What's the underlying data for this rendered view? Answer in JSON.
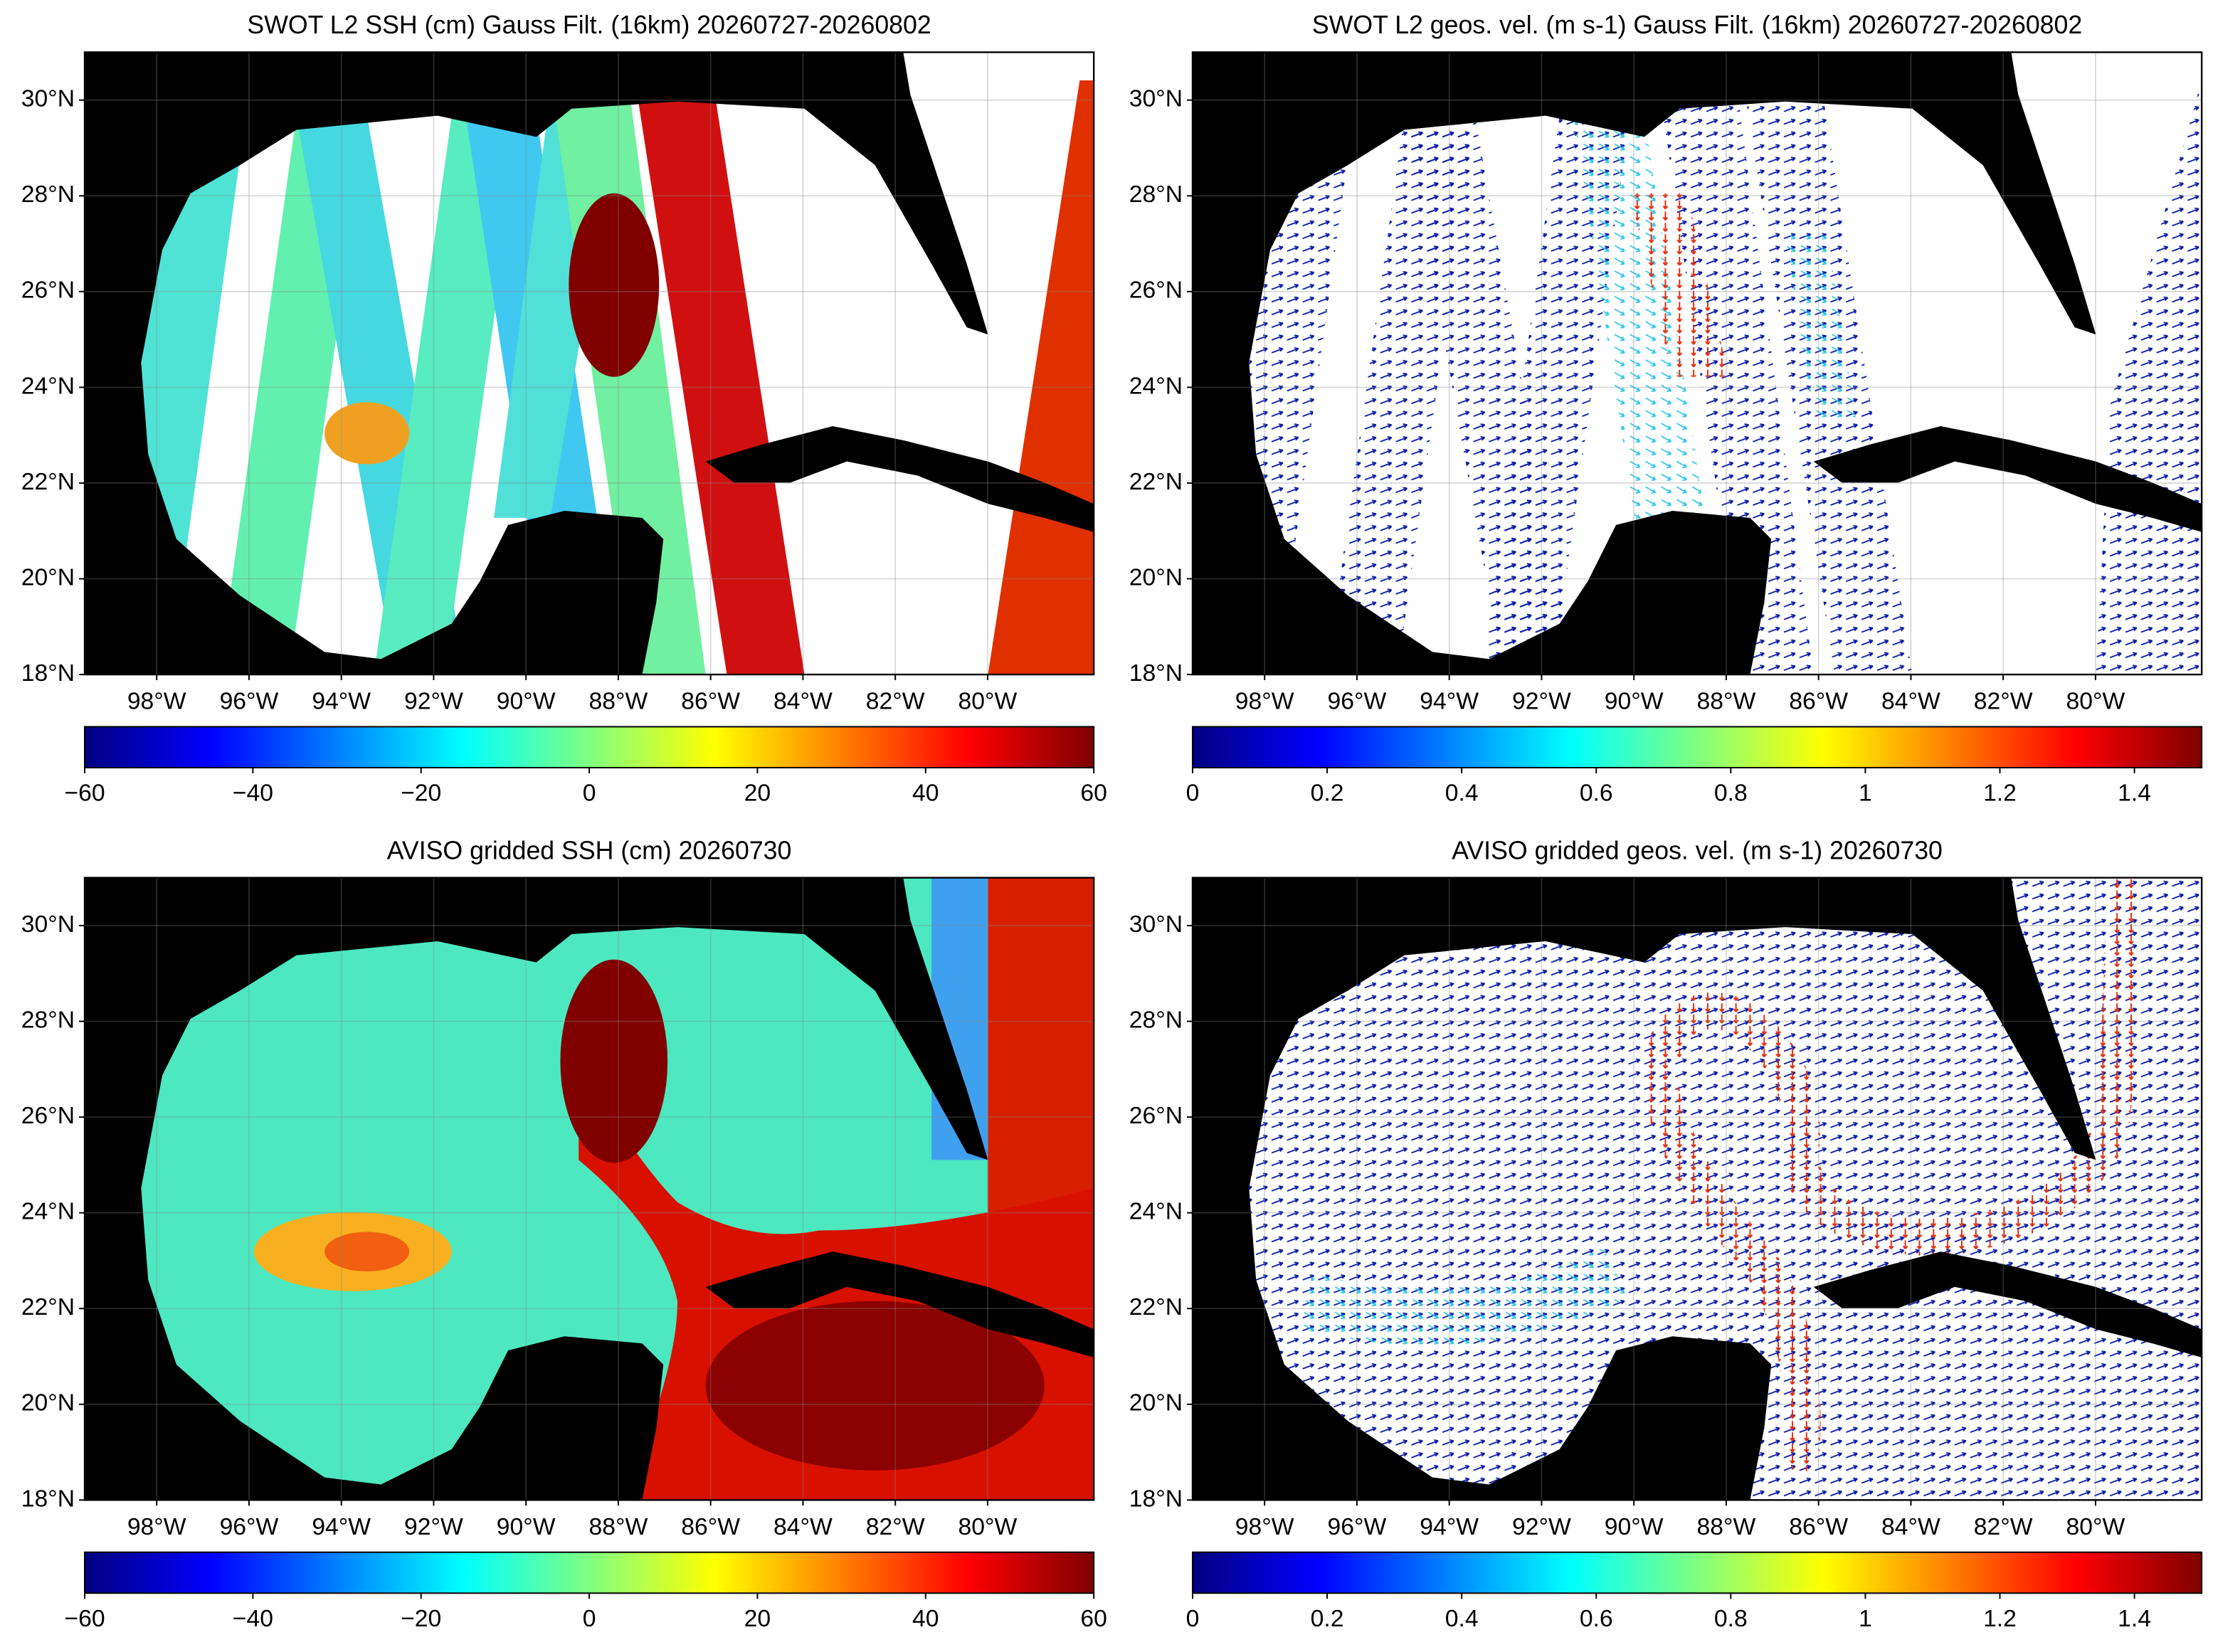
{
  "chart_data": [
    {
      "type": "map",
      "title": "SWOT L2 SSH (cm) Gauss Filt. (16km) 20260727-20260802",
      "xlim": [
        -99.56,
        -77.7
      ],
      "ylim": [
        18,
        31
      ],
      "xticks": [
        {
          "value": -98,
          "label": "98°W"
        },
        {
          "value": -96,
          "label": "96°W"
        },
        {
          "value": -94,
          "label": "94°W"
        },
        {
          "value": -92,
          "label": "92°W"
        },
        {
          "value": -90,
          "label": "90°W"
        },
        {
          "value": -88,
          "label": "88°W"
        },
        {
          "value": -86,
          "label": "86°W"
        },
        {
          "value": -84,
          "label": "84°W"
        },
        {
          "value": -82,
          "label": "82°W"
        },
        {
          "value": -80,
          "label": "80°W"
        }
      ],
      "yticks": [
        {
          "value": 18,
          "label": "18°N"
        },
        {
          "value": 20,
          "label": "20°N"
        },
        {
          "value": 22,
          "label": "22°N"
        },
        {
          "value": 24,
          "label": "24°N"
        },
        {
          "value": 26,
          "label": "26°N"
        },
        {
          "value": 28,
          "label": "28°N"
        },
        {
          "value": 30,
          "label": "30°N"
        }
      ],
      "grid": true,
      "colormap": "jet",
      "clim": [
        -60,
        60
      ],
      "cticks": [
        {
          "value": -60,
          "label": "−60"
        },
        {
          "value": -40,
          "label": "−40"
        },
        {
          "value": -20,
          "label": "−20"
        },
        0,
        20,
        40,
        60
      ]
    },
    {
      "type": "map",
      "title": "SWOT L2 geos. vel. (m s-1) Gauss Filt. (16km) 20260727-20260802",
      "xlim": [
        -99.56,
        -77.7
      ],
      "ylim": [
        18,
        31
      ],
      "xticks": [
        {
          "value": -98,
          "label": "98°W"
        },
        {
          "value": -96,
          "label": "96°W"
        },
        {
          "value": -94,
          "label": "94°W"
        },
        {
          "value": -92,
          "label": "92°W"
        },
        {
          "value": -90,
          "label": "90°W"
        },
        {
          "value": -88,
          "label": "88°W"
        },
        {
          "value": -86,
          "label": "86°W"
        },
        {
          "value": -84,
          "label": "84°W"
        },
        {
          "value": -82,
          "label": "82°W"
        },
        {
          "value": -80,
          "label": "80°W"
        }
      ],
      "yticks": [
        {
          "value": 18,
          "label": "18°N"
        },
        {
          "value": 20,
          "label": "20°N"
        },
        {
          "value": 22,
          "label": "22°N"
        },
        {
          "value": 24,
          "label": "24°N"
        },
        {
          "value": 26,
          "label": "26°N"
        },
        {
          "value": 28,
          "label": "28°N"
        },
        {
          "value": 30,
          "label": "30°N"
        }
      ],
      "grid": true,
      "colormap": "jet",
      "clim": [
        0,
        1.5
      ],
      "cticks": [
        0,
        0.2,
        0.4,
        0.6,
        0.8,
        1,
        1.2,
        1.4
      ]
    },
    {
      "type": "map",
      "title": "AVISO gridded SSH (cm) 20260730",
      "xlim": [
        -99.56,
        -77.7
      ],
      "ylim": [
        18,
        31
      ],
      "xticks": [
        {
          "value": -98,
          "label": "98°W"
        },
        {
          "value": -96,
          "label": "96°W"
        },
        {
          "value": -94,
          "label": "94°W"
        },
        {
          "value": -92,
          "label": "92°W"
        },
        {
          "value": -90,
          "label": "90°W"
        },
        {
          "value": -88,
          "label": "88°W"
        },
        {
          "value": -86,
          "label": "86°W"
        },
        {
          "value": -84,
          "label": "84°W"
        },
        {
          "value": -82,
          "label": "82°W"
        },
        {
          "value": -80,
          "label": "80°W"
        }
      ],
      "yticks": [
        {
          "value": 18,
          "label": "18°N"
        },
        {
          "value": 20,
          "label": "20°N"
        },
        {
          "value": 22,
          "label": "22°N"
        },
        {
          "value": 24,
          "label": "24°N"
        },
        {
          "value": 26,
          "label": "26°N"
        },
        {
          "value": 28,
          "label": "28°N"
        },
        {
          "value": 30,
          "label": "30°N"
        }
      ],
      "grid": true,
      "colormap": "jet",
      "clim": [
        -60,
        60
      ],
      "cticks": [
        {
          "value": -60,
          "label": "−60"
        },
        {
          "value": -40,
          "label": "−40"
        },
        {
          "value": -20,
          "label": "−20"
        },
        0,
        20,
        40,
        60
      ]
    },
    {
      "type": "map",
      "title": "AVISO gridded geos. vel. (m s-1)  20260730",
      "xlim": [
        -99.56,
        -77.7
      ],
      "ylim": [
        18,
        31
      ],
      "xticks": [
        {
          "value": -98,
          "label": "98°W"
        },
        {
          "value": -96,
          "label": "96°W"
        },
        {
          "value": -94,
          "label": "94°W"
        },
        {
          "value": -92,
          "label": "92°W"
        },
        {
          "value": -90,
          "label": "90°W"
        },
        {
          "value": -88,
          "label": "88°W"
        },
        {
          "value": -86,
          "label": "86°W"
        },
        {
          "value": -84,
          "label": "84°W"
        },
        {
          "value": -82,
          "label": "82°W"
        },
        {
          "value": -80,
          "label": "80°W"
        }
      ],
      "yticks": [
        {
          "value": 18,
          "label": "18°N"
        },
        {
          "value": 20,
          "label": "20°N"
        },
        {
          "value": 22,
          "label": "22°N"
        },
        {
          "value": 24,
          "label": "24°N"
        },
        {
          "value": 26,
          "label": "26°N"
        },
        {
          "value": 28,
          "label": "28°N"
        },
        {
          "value": 30,
          "label": "30°N"
        }
      ],
      "grid": true,
      "colormap": "jet",
      "clim": [
        0,
        1.5
      ],
      "cticks": [
        0,
        0.2,
        0.4,
        0.6,
        0.8,
        1,
        1.2,
        1.4
      ]
    }
  ]
}
